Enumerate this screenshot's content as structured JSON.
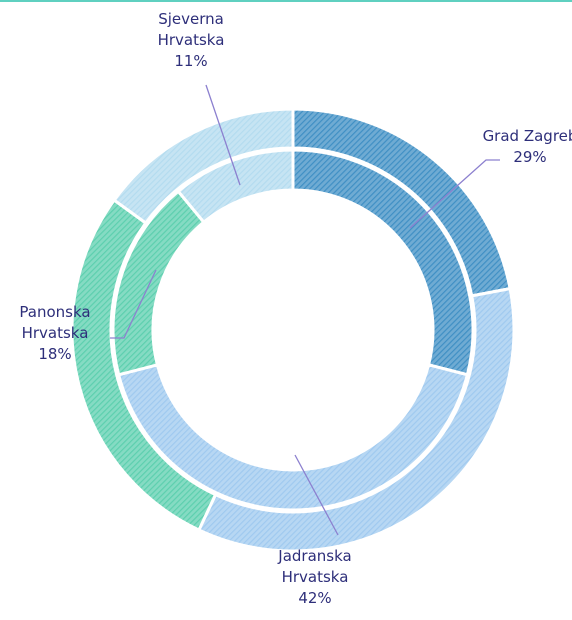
{
  "chart_data": {
    "type": "doughnut",
    "categories": [
      "Grad Zagreb",
      "Jadranska Hrvatska",
      "Panonska Hrvatska",
      "Sjeverna Hrvatska"
    ],
    "colors": [
      "#3f8fc4",
      "#9fc9ef",
      "#5ccfae",
      "#b3dbef"
    ],
    "series": [
      {
        "values": [
          29,
          42,
          18,
          11
        ],
        "value_labels": [
          "29%",
          "42%",
          "18%",
          "11%"
        ]
      },
      {
        "values": [
          22,
          35,
          28,
          15
        ]
      }
    ]
  }
}
